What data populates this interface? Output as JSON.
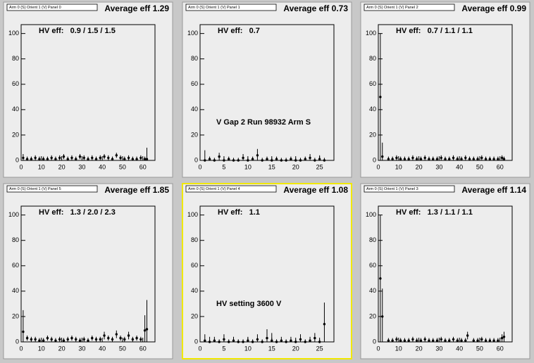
{
  "chart_data": [
    {
      "type": "errorbar",
      "title": "Arm 0 (S) Orient 1 (V) Panel 0",
      "subtitle": "Average eff 1.29",
      "annotation": "HV eff:   0.9 / 1.5 / 1.5",
      "x": [
        1,
        3,
        5,
        7,
        9,
        11,
        13,
        15,
        17,
        19,
        21,
        23,
        25,
        27,
        29,
        31,
        33,
        35,
        37,
        39,
        41,
        43,
        45,
        47,
        49,
        51,
        53,
        55,
        57,
        59,
        61,
        62
      ],
      "values": [
        2,
        1,
        1,
        2,
        1,
        1,
        1,
        2,
        1,
        2,
        3,
        1,
        2,
        1,
        3,
        2,
        1,
        2,
        1,
        2,
        3,
        2,
        1,
        4,
        2,
        1,
        2,
        1,
        1,
        2,
        1,
        1
      ],
      "errors": [
        3,
        2,
        2,
        2,
        2,
        2,
        2,
        2,
        2,
        2,
        2,
        2,
        2,
        2,
        2,
        2,
        2,
        2,
        2,
        2,
        2,
        2,
        2,
        2,
        2,
        2,
        2,
        2,
        2,
        2,
        2,
        9
      ],
      "xlim": [
        0,
        66
      ],
      "xticks": [
        0,
        10,
        20,
        30,
        40,
        50,
        60
      ],
      "ylim": [
        0,
        107
      ],
      "yticks": [
        0,
        20,
        40,
        60,
        80,
        100
      ]
    },
    {
      "type": "errorbar",
      "title": "Arm 0 (S) Orient 1 (V) Panel 1",
      "subtitle": "Average eff 0.73",
      "annotation": "HV eff:   0.7",
      "note": "V Gap 2 Run 98932 Arm S",
      "x": [
        1,
        2,
        3,
        4,
        5,
        6,
        7,
        8,
        9,
        10,
        11,
        12,
        13,
        14,
        15,
        16,
        17,
        18,
        19,
        20,
        21,
        22,
        23,
        24,
        25,
        26
      ],
      "values": [
        0,
        1,
        0,
        3,
        0,
        1,
        0,
        0,
        2,
        0,
        1,
        4,
        0,
        1,
        0,
        1,
        0,
        0,
        1,
        0,
        0,
        1,
        2,
        0,
        1,
        0
      ],
      "errors": [
        8,
        2,
        2,
        3,
        2,
        2,
        2,
        2,
        3,
        2,
        2,
        5,
        2,
        2,
        2,
        2,
        2,
        2,
        2,
        2,
        2,
        2,
        3,
        2,
        3,
        2
      ],
      "xlim": [
        0,
        28
      ],
      "xticks": [
        0,
        5,
        10,
        15,
        20,
        25
      ],
      "ylim": [
        0,
        107
      ],
      "yticks": [
        0,
        20,
        40,
        60,
        80,
        100
      ]
    },
    {
      "type": "errorbar",
      "title": "Arm 0 (S) Orient 1 (V) Panel 2",
      "subtitle": "Average eff 0.99",
      "annotation": "HV eff:   0.7 / 1.1 / 1.1",
      "x": [
        1,
        2,
        5,
        7,
        9,
        11,
        13,
        15,
        17,
        19,
        21,
        23,
        25,
        27,
        29,
        31,
        33,
        35,
        37,
        39,
        41,
        43,
        45,
        47,
        49,
        51,
        53,
        55,
        57,
        59,
        61,
        62
      ],
      "values": [
        50,
        3,
        1,
        1,
        2,
        1,
        1,
        1,
        2,
        1,
        1,
        2,
        1,
        1,
        1,
        2,
        1,
        1,
        2,
        1,
        1,
        2,
        1,
        1,
        1,
        2,
        1,
        1,
        1,
        1,
        2,
        1
      ],
      "errors": [
        50,
        11,
        2,
        2,
        2,
        2,
        2,
        2,
        2,
        2,
        2,
        2,
        2,
        2,
        2,
        2,
        2,
        2,
        2,
        2,
        2,
        2,
        2,
        2,
        2,
        2,
        2,
        2,
        2,
        2,
        2,
        2
      ],
      "xlim": [
        0,
        66
      ],
      "xticks": [
        0,
        10,
        20,
        30,
        40,
        50,
        60
      ],
      "ylim": [
        0,
        107
      ],
      "yticks": [
        0,
        20,
        40,
        60,
        80,
        100
      ]
    },
    {
      "type": "errorbar",
      "title": "Arm 0 (S) Orient 1 (V) Panel 5",
      "subtitle": "Average eff 1.85",
      "annotation": "HV eff:   1.3 / 2.0 / 2.3",
      "x": [
        1,
        3,
        5,
        7,
        9,
        11,
        13,
        15,
        17,
        19,
        21,
        23,
        25,
        27,
        29,
        31,
        33,
        35,
        37,
        39,
        41,
        43,
        45,
        47,
        49,
        51,
        53,
        55,
        57,
        59,
        61,
        62
      ],
      "values": [
        8,
        3,
        2,
        2,
        1,
        1,
        3,
        2,
        1,
        2,
        1,
        2,
        3,
        2,
        1,
        2,
        1,
        3,
        2,
        2,
        5,
        3,
        2,
        6,
        3,
        2,
        5,
        2,
        3,
        2,
        9,
        10
      ],
      "errors": [
        17,
        2,
        2,
        2,
        2,
        2,
        2,
        2,
        2,
        2,
        2,
        2,
        2,
        2,
        2,
        2,
        2,
        2,
        2,
        2,
        3,
        2,
        2,
        3,
        2,
        2,
        3,
        2,
        2,
        2,
        12,
        23
      ],
      "xlim": [
        0,
        66
      ],
      "xticks": [
        0,
        10,
        20,
        30,
        40,
        50,
        60
      ],
      "ylim": [
        0,
        107
      ],
      "yticks": [
        0,
        20,
        40,
        60,
        80,
        100
      ]
    },
    {
      "type": "errorbar",
      "title": "Arm 0 (S) Orient 1 (V) Panel 4",
      "subtitle": "Average eff 1.08",
      "annotation": "HV eff:   1.1",
      "note": "HV setting 3600 V",
      "x": [
        1,
        2,
        3,
        4,
        5,
        6,
        7,
        8,
        9,
        10,
        11,
        12,
        13,
        14,
        15,
        16,
        17,
        18,
        19,
        20,
        21,
        22,
        23,
        24,
        25,
        26
      ],
      "values": [
        1,
        0,
        1,
        0,
        2,
        0,
        1,
        0,
        0,
        1,
        0,
        2,
        0,
        3,
        1,
        0,
        1,
        0,
        1,
        0,
        2,
        0,
        1,
        3,
        0,
        14
      ],
      "errors": [
        5,
        4,
        3,
        2,
        4,
        2,
        3,
        2,
        2,
        3,
        2,
        4,
        2,
        7,
        6,
        2,
        3,
        2,
        3,
        2,
        4,
        2,
        3,
        4,
        2,
        17
      ],
      "xlim": [
        0,
        28
      ],
      "xticks": [
        0,
        5,
        10,
        15,
        20,
        25
      ],
      "ylim": [
        0,
        107
      ],
      "yticks": [
        0,
        20,
        40,
        60,
        80,
        100
      ]
    },
    {
      "type": "errorbar",
      "title": "Arm 0 (S) Orient 1 (V) Panel 3",
      "subtitle": "Average eff 1.14",
      "annotation": "HV eff:   1.3 / 1.1 / 1.1",
      "x": [
        1,
        2,
        5,
        7,
        9,
        11,
        13,
        15,
        17,
        19,
        21,
        23,
        25,
        27,
        29,
        31,
        33,
        35,
        37,
        39,
        41,
        43,
        44,
        47,
        49,
        51,
        53,
        55,
        57,
        59,
        61,
        62
      ],
      "values": [
        50,
        20,
        1,
        1,
        2,
        1,
        1,
        1,
        2,
        1,
        1,
        2,
        1,
        1,
        1,
        2,
        1,
        1,
        2,
        1,
        1,
        1,
        5,
        1,
        1,
        2,
        1,
        1,
        1,
        1,
        3,
        4
      ],
      "errors": [
        50,
        22,
        2,
        2,
        2,
        2,
        2,
        2,
        2,
        2,
        2,
        2,
        2,
        2,
        2,
        2,
        2,
        2,
        2,
        2,
        2,
        2,
        3,
        2,
        2,
        2,
        2,
        2,
        2,
        2,
        3,
        4
      ],
      "xlim": [
        0,
        66
      ],
      "xticks": [
        0,
        10,
        20,
        30,
        40,
        50,
        60
      ],
      "ylim": [
        0,
        107
      ],
      "yticks": [
        0,
        20,
        40,
        60,
        80,
        100
      ]
    }
  ]
}
